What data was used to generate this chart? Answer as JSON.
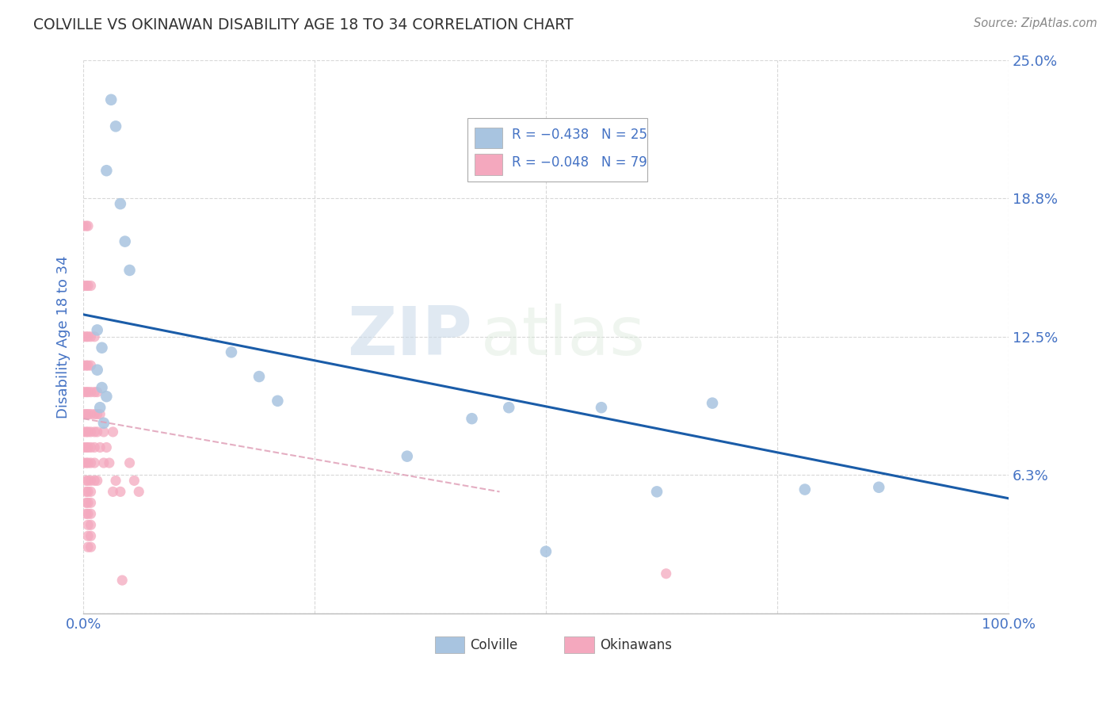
{
  "title": "COLVILLE VS OKINAWAN DISABILITY AGE 18 TO 34 CORRELATION CHART",
  "source": "Source: ZipAtlas.com",
  "ylabel": "Disability Age 18 to 34",
  "xlim": [
    0,
    1.0
  ],
  "ylim": [
    0,
    0.25
  ],
  "colville_color": "#a8c4e0",
  "okinawan_color": "#f4a8be",
  "colville_line_color": "#1a5ca8",
  "okinawan_line_color": "#e0a0b8",
  "text_color": "#4472c4",
  "grid_color": "#d8d8d8",
  "background_color": "#ffffff",
  "watermark_zip": "ZIP",
  "watermark_atlas": "atlas",
  "colville_x": [
    0.03,
    0.035,
    0.025,
    0.04,
    0.045,
    0.05,
    0.015,
    0.02,
    0.015,
    0.02,
    0.025,
    0.018,
    0.022,
    0.16,
    0.19,
    0.21,
    0.42,
    0.46,
    0.35,
    0.56,
    0.68,
    0.78,
    0.86,
    0.62,
    0.5
  ],
  "colville_y": [
    0.232,
    0.22,
    0.2,
    0.185,
    0.168,
    0.155,
    0.128,
    0.12,
    0.11,
    0.102,
    0.098,
    0.093,
    0.086,
    0.118,
    0.107,
    0.096,
    0.088,
    0.093,
    0.071,
    0.093,
    0.095,
    0.056,
    0.057,
    0.055,
    0.028
  ],
  "okinawan_x_near": [
    0.0,
    0.0,
    0.0,
    0.0,
    0.0,
    0.0,
    0.0,
    0.0,
    0.0,
    0.003,
    0.003,
    0.003,
    0.003,
    0.003,
    0.003,
    0.003,
    0.003,
    0.003,
    0.003,
    0.003,
    0.003,
    0.003,
    0.005,
    0.005,
    0.005,
    0.005,
    0.005,
    0.005,
    0.005,
    0.005,
    0.005,
    0.005,
    0.005,
    0.005,
    0.005,
    0.005,
    0.005,
    0.005,
    0.008,
    0.008,
    0.008,
    0.008,
    0.008,
    0.008,
    0.008,
    0.008,
    0.008,
    0.008,
    0.008,
    0.008,
    0.008,
    0.008,
    0.008,
    0.012,
    0.012,
    0.012,
    0.012,
    0.012,
    0.012,
    0.012,
    0.015,
    0.015,
    0.015,
    0.015,
    0.018,
    0.018,
    0.022,
    0.022,
    0.025,
    0.028,
    0.032,
    0.032,
    0.035,
    0.04,
    0.042,
    0.05,
    0.055,
    0.06,
    0.63
  ],
  "okinawan_y_near": [
    0.175,
    0.148,
    0.125,
    0.112,
    0.1,
    0.09,
    0.082,
    0.075,
    0.068,
    0.175,
    0.148,
    0.125,
    0.112,
    0.1,
    0.09,
    0.082,
    0.075,
    0.068,
    0.06,
    0.055,
    0.05,
    0.045,
    0.175,
    0.148,
    0.125,
    0.112,
    0.1,
    0.09,
    0.082,
    0.075,
    0.068,
    0.06,
    0.055,
    0.05,
    0.045,
    0.04,
    0.035,
    0.03,
    0.148,
    0.125,
    0.112,
    0.1,
    0.09,
    0.082,
    0.075,
    0.068,
    0.06,
    0.055,
    0.05,
    0.045,
    0.04,
    0.035,
    0.03,
    0.125,
    0.1,
    0.09,
    0.082,
    0.075,
    0.068,
    0.06,
    0.1,
    0.09,
    0.082,
    0.06,
    0.09,
    0.075,
    0.082,
    0.068,
    0.075,
    0.068,
    0.082,
    0.055,
    0.06,
    0.055,
    0.015,
    0.068,
    0.06,
    0.055,
    0.018
  ],
  "colville_trend_x": [
    0.0,
    1.0
  ],
  "colville_trend_y": [
    0.135,
    0.052
  ],
  "okinawan_trend_x": [
    0.0,
    0.45
  ],
  "okinawan_trend_y": [
    0.088,
    0.055
  ]
}
